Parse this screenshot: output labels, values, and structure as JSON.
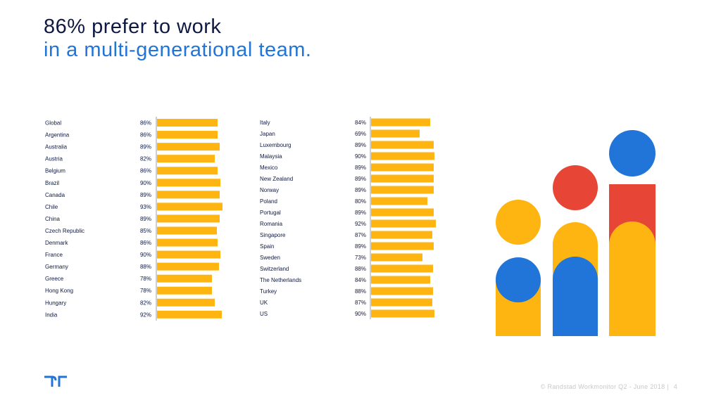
{
  "slide": {
    "title_line1": "86% prefer to work",
    "title_line2": "in a multi-generational team.",
    "footer_copyright": "© Randstad Workmonitor Q2 - June 2018 |",
    "page_number": "4"
  },
  "colors": {
    "navy": "#0f1941",
    "blue": "#2175d9",
    "bar": "#ffb511",
    "red": "#e74536",
    "axis": "#888888"
  },
  "icons": [
    "randstad-logo-icon",
    "people-illustration"
  ],
  "chart_data": [
    {
      "type": "bar",
      "orientation": "horizontal",
      "categories": [
        "Global",
        "Argentina",
        "Australia",
        "Austria",
        "Belgium",
        "Brazil",
        "Canada",
        "Chile",
        "China",
        "Czech Republic",
        "Denmark",
        "France",
        "Germany",
        "Greece",
        "Hong Kong",
        "Hungary",
        "India"
      ],
      "values": [
        86,
        86,
        89,
        82,
        86,
        90,
        89,
        93,
        89,
        85,
        86,
        90,
        88,
        78,
        78,
        82,
        92
      ],
      "value_labels": [
        "86%",
        "86%",
        "89%",
        "82%",
        "86%",
        "90%",
        "89%",
        "93%",
        "89%",
        "85%",
        "86%",
        "90%",
        "88%",
        "78%",
        "78%",
        "82%",
        "92%"
      ],
      "xlim": [
        0,
        100
      ]
    },
    {
      "type": "bar",
      "orientation": "horizontal",
      "categories": [
        "Italy",
        "Japan",
        "Luxembourg",
        "Malaysia",
        "Mexico",
        "New Zealand",
        "Norway",
        "Poland",
        "Portugal",
        "Romania",
        "Singapore",
        "Spain",
        "Sweden",
        "Switzerland",
        "The Netherlands",
        "Turkey",
        "UK",
        "US"
      ],
      "values": [
        84,
        69,
        89,
        90,
        89,
        89,
        89,
        80,
        89,
        92,
        87,
        89,
        73,
        88,
        84,
        88,
        87,
        90
      ],
      "value_labels": [
        "84%",
        "69%",
        "89%",
        "90%",
        "89%",
        "89%",
        "89%",
        "80%",
        "89%",
        "92%",
        "87%",
        "89%",
        "73%",
        "88%",
        "84%",
        "88%",
        "87%",
        "90%"
      ],
      "xlim": [
        0,
        100
      ]
    }
  ]
}
